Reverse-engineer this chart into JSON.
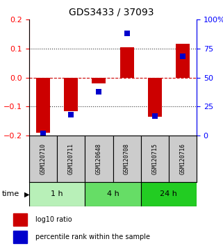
{
  "title": "GDS3433 / 37093",
  "samples": [
    "GSM120710",
    "GSM120711",
    "GSM120648",
    "GSM120708",
    "GSM120715",
    "GSM120716"
  ],
  "log10_ratio": [
    -0.19,
    -0.115,
    -0.02,
    0.105,
    -0.135,
    0.115
  ],
  "percentile_rank": [
    2,
    18,
    38,
    88,
    17,
    68
  ],
  "ylim_left": [
    -0.2,
    0.2
  ],
  "ylim_right": [
    0,
    100
  ],
  "yticks_left": [
    -0.2,
    -0.1,
    0,
    0.1,
    0.2
  ],
  "yticks_right": [
    0,
    25,
    50,
    75,
    100
  ],
  "bar_color": "#cc0000",
  "point_color": "#0000cc",
  "zero_line_color": "#cc0000",
  "grid_line_color": "#000000",
  "time_groups": [
    {
      "label": "1 h",
      "start": 0,
      "end": 2,
      "color": "#b8f0b8"
    },
    {
      "label": "4 h",
      "start": 2,
      "end": 4,
      "color": "#66dd66"
    },
    {
      "label": "24 h",
      "start": 4,
      "end": 6,
      "color": "#22cc22"
    }
  ],
  "sample_box_color": "#cccccc",
  "legend_labels": [
    "log10 ratio",
    "percentile rank within the sample"
  ],
  "bar_width": 0.5,
  "point_size": 6,
  "title_fontsize": 10,
  "tick_fontsize": 8,
  "sample_fontsize": 6,
  "time_fontsize": 8,
  "legend_fontsize": 7
}
